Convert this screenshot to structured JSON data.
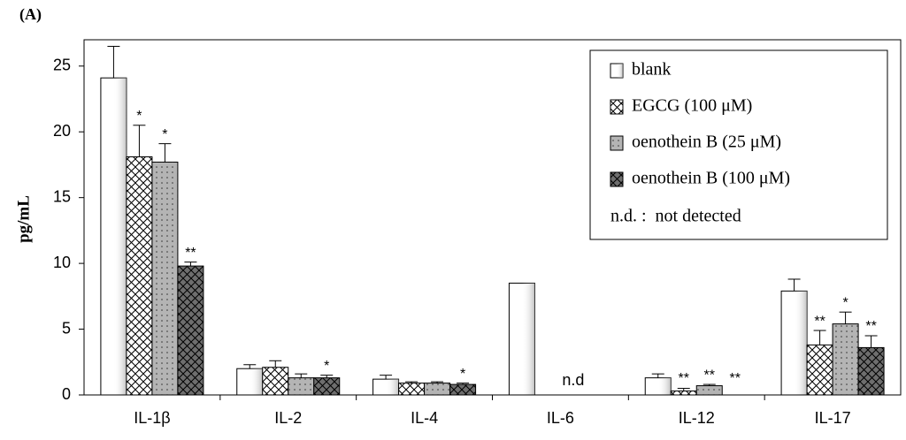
{
  "chart_data": {
    "type": "bar",
    "panel_label": "(A)",
    "y_label": "pg/mL",
    "categories": [
      "IL-1β",
      "IL-2",
      "IL-4",
      "IL-6",
      "IL-12",
      "IL-17"
    ],
    "series": [
      {
        "name": "blank",
        "color": "#ffffff",
        "pattern": "plain",
        "values": [
          24.1,
          2.0,
          1.2,
          8.5,
          1.3,
          7.9
        ],
        "errors": [
          2.4,
          0.3,
          0.3,
          null,
          0.3,
          0.9
        ],
        "significance": [
          null,
          null,
          null,
          null,
          null,
          null
        ]
      },
      {
        "name": "EGCG (100 μM)",
        "color": "#ffffff",
        "pattern": "crosshatch",
        "values": [
          18.1,
          2.1,
          0.9,
          null,
          0.3,
          3.8
        ],
        "errors": [
          2.4,
          0.5,
          0.1,
          null,
          0.2,
          1.1
        ],
        "significance": [
          "*",
          null,
          null,
          null,
          "**",
          "**"
        ]
      },
      {
        "name": "oenothein B (25 μM)",
        "color": "#b4b4b4",
        "pattern": "dots",
        "values": [
          17.7,
          1.3,
          0.9,
          null,
          0.7,
          5.4
        ],
        "errors": [
          1.4,
          0.3,
          0.1,
          null,
          0.1,
          0.9
        ],
        "significance": [
          "*",
          null,
          null,
          null,
          "**",
          "*"
        ]
      },
      {
        "name": "oenothein B (100 μM)",
        "color": "#6e6e6e",
        "pattern": "crosshatch",
        "values": [
          9.8,
          1.3,
          0.8,
          null,
          0,
          3.6
        ],
        "errors": [
          0.3,
          0.2,
          0.1,
          null,
          null,
          0.9
        ],
        "significance": [
          "**",
          "*",
          "*",
          null,
          "**",
          "**"
        ]
      }
    ],
    "not_detected_label": "n.d",
    "legend_note": "n.d. :  not detected",
    "ylim": [
      0,
      27
    ],
    "yticks": [
      0,
      5,
      10,
      15,
      20,
      25
    ],
    "grid": false,
    "legend": "upper right"
  }
}
